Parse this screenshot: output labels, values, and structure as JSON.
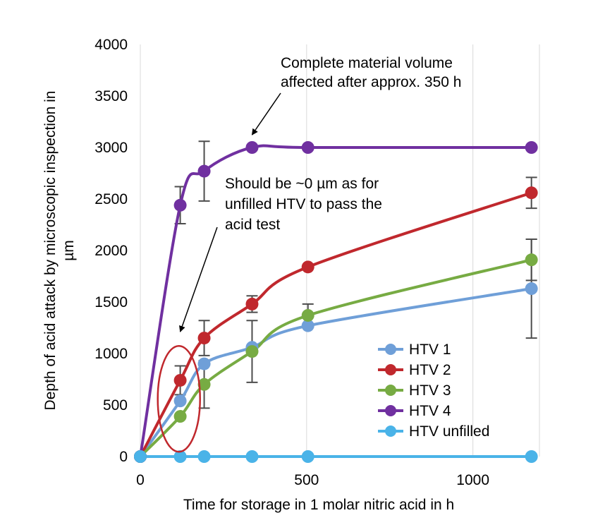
{
  "chart_data": {
    "type": "line",
    "xlabel": "Time for storage in 1 molar nitric acid in h",
    "ylabel_lines": [
      "Depth of acid attack by microscopic inspection in",
      "µm"
    ],
    "xlim": [
      0,
      1200
    ],
    "ylim": [
      0,
      4000
    ],
    "x_ticks": [
      0,
      500,
      1000
    ],
    "y_ticks": [
      0,
      500,
      1000,
      1500,
      2000,
      2500,
      3000,
      3500,
      4000
    ],
    "grid": {
      "vertical": true,
      "horizontal": false
    },
    "legend_position": "bottom-right",
    "series": [
      {
        "name": "HTV 1",
        "color": "#6f9fd8",
        "x": [
          0,
          120,
          192,
          336,
          504,
          1176
        ],
        "y": [
          0,
          540,
          900,
          1060,
          1270,
          1630
        ],
        "err": [
          0,
          0,
          0,
          0,
          0,
          480
        ]
      },
      {
        "name": "HTV 2",
        "color": "#c0282d",
        "x": [
          0,
          120,
          192,
          336,
          504,
          1176
        ],
        "y": [
          0,
          740,
          1150,
          1480,
          1840,
          2560
        ],
        "err": [
          0,
          140,
          170,
          80,
          0,
          150
        ]
      },
      {
        "name": "HTV 3",
        "color": "#77ab43",
        "x": [
          0,
          120,
          192,
          336,
          504,
          1176
        ],
        "y": [
          0,
          390,
          700,
          1020,
          1370,
          1910
        ],
        "err": [
          0,
          0,
          230,
          300,
          110,
          200
        ]
      },
      {
        "name": "HTV 4",
        "color": "#7030a0",
        "x": [
          0,
          120,
          192,
          336,
          504,
          1176
        ],
        "y": [
          0,
          2440,
          2770,
          3000,
          3000,
          3000
        ],
        "err": [
          0,
          180,
          290,
          0,
          0,
          0
        ]
      },
      {
        "name": "HTV unfilled",
        "color": "#4ab3e8",
        "x": [
          0,
          120,
          192,
          336,
          504,
          1176
        ],
        "y": [
          0,
          0,
          0,
          0,
          0,
          0
        ],
        "err": [
          0,
          0,
          0,
          0,
          0,
          0
        ]
      }
    ],
    "annotations": [
      {
        "lines": [
          "Complete material volume",
          "affected after approx. 350 h"
        ],
        "arrow_to": {
          "x": 336,
          "y": 3000
        }
      },
      {
        "lines": [
          "Should be ~0 µm as for",
          "unfilled HTV to pass the",
          "acid test"
        ],
        "arrow_to": {
          "x": 120,
          "y": 1020
        }
      }
    ],
    "highlight_ellipse": {
      "color": "#c0282d",
      "x_center": 116,
      "y_center": 560
    }
  }
}
